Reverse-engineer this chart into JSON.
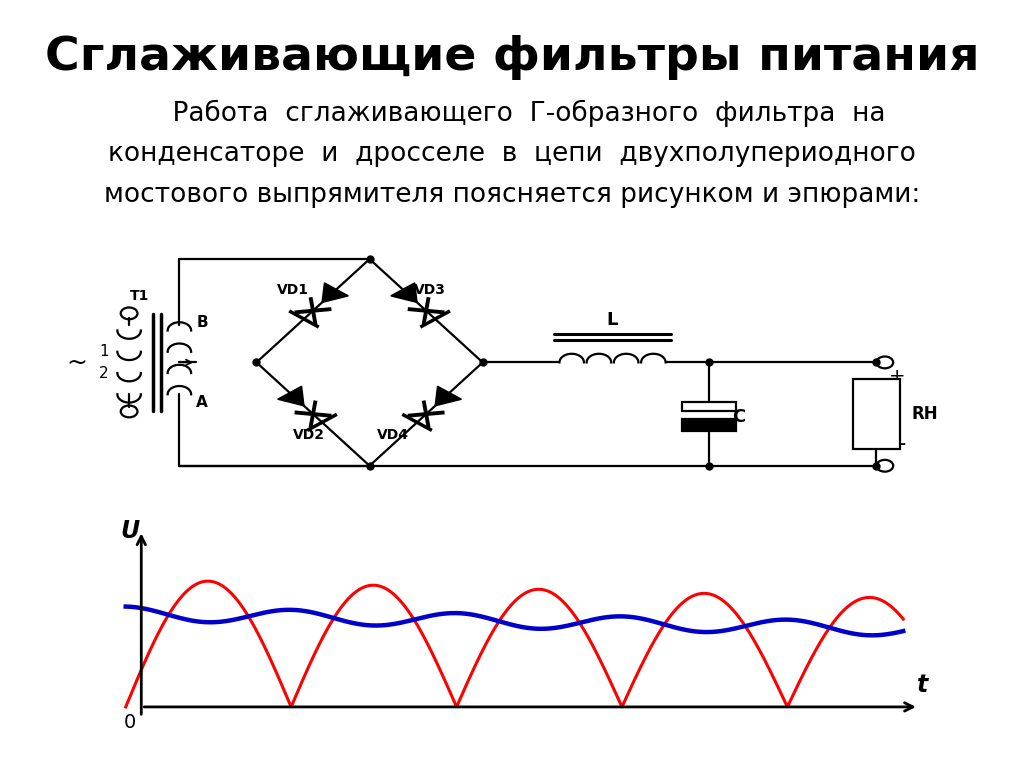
{
  "title": "Сглаживающие фильтры питания",
  "bg_color": "#ffffff",
  "title_color": "#000000",
  "body_color": "#000000",
  "title_fontsize": 34,
  "body_fontsize": 19,
  "red_color": "#ff0000",
  "blue_color": "#0000cc",
  "black_color": "#000000",
  "body_lines": [
    "    Работа  сглаживающего  Г-образного  фильтра  на",
    "конденсаторе  и  дросселе  в  цепи  двухполупериодного",
    "мостового выпрямителя поясняется рисунком и эпюрами:"
  ]
}
